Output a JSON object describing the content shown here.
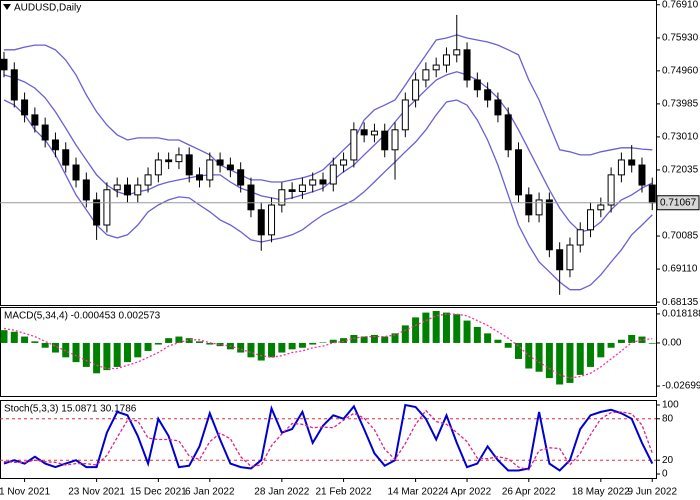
{
  "chart_data": [
    {
      "type": "candlestick",
      "title": "AUDUSD,Daily",
      "categories": [
        null,
        null,
        "1 Nov 2021",
        null,
        null,
        null,
        null,
        null,
        null,
        "23 Nov 2021",
        null,
        null,
        null,
        null,
        null,
        "15 Dec 2021",
        null,
        null,
        null,
        null,
        "6 Jan 2022",
        null,
        null,
        null,
        null,
        null,
        null,
        "28 Jan 2022",
        null,
        null,
        null,
        null,
        null,
        "21 Feb 2022",
        null,
        null,
        null,
        null,
        null,
        null,
        "14 Mar 2022",
        null,
        null,
        null,
        null,
        "4 Apr 2022",
        null,
        null,
        null,
        null,
        null,
        "26 Apr 2022",
        null,
        null,
        null,
        null,
        null,
        null,
        "18 May 2022",
        null,
        null,
        null,
        null,
        "9 Jun 2022"
      ],
      "open": [
        0.753,
        0.7499,
        0.741,
        0.7366,
        0.7336,
        0.7292,
        0.7263,
        0.7218,
        0.7174,
        0.7115,
        0.7041,
        0.7145,
        0.7159,
        0.713,
        0.7159,
        0.7189,
        0.7233,
        0.7228,
        0.7248,
        0.7189,
        0.7174,
        0.7233,
        0.7218,
        0.7204,
        0.7159,
        0.7086,
        0.7012,
        0.71,
        0.7145,
        0.714,
        0.7159,
        0.7174,
        0.7162,
        0.7218,
        0.7233,
        0.7322,
        0.7307,
        0.7318,
        0.7263,
        0.7322,
        0.741,
        0.7469,
        0.7499,
        0.7513,
        0.7543,
        0.7558,
        0.7469,
        0.744,
        0.741,
        0.7366,
        0.7263,
        0.713,
        0.7071,
        0.7115,
        0.6968,
        0.6909,
        0.6982,
        0.7027,
        0.7086,
        0.71,
        0.7189,
        0.7233,
        0.7218,
        0.7159
      ],
      "high": [
        0.7552,
        0.7521,
        0.7432,
        0.7388,
        0.7358,
        0.7314,
        0.7285,
        0.724,
        0.7196,
        0.7137,
        0.7167,
        0.7181,
        0.7181,
        0.7181,
        0.7211,
        0.7255,
        0.7255,
        0.727,
        0.727,
        0.7211,
        0.7255,
        0.7255,
        0.724,
        0.7226,
        0.7181,
        0.7108,
        0.7122,
        0.7167,
        0.7167,
        0.7181,
        0.7196,
        0.7196,
        0.724,
        0.7255,
        0.7344,
        0.7344,
        0.734,
        0.734,
        0.7344,
        0.7432,
        0.7491,
        0.7521,
        0.7535,
        0.7565,
        0.7661,
        0.758,
        0.7491,
        0.7462,
        0.7432,
        0.7388,
        0.7285,
        0.7152,
        0.7137,
        0.7137,
        0.699,
        0.7004,
        0.7049,
        0.7108,
        0.7122,
        0.7211,
        0.7255,
        0.7277,
        0.724,
        0.7181
      ],
      "low": [
        0.7477,
        0.7388,
        0.7344,
        0.7314,
        0.727,
        0.7241,
        0.7196,
        0.7152,
        0.7093,
        0.6997,
        0.7019,
        0.7123,
        0.7108,
        0.7108,
        0.7137,
        0.7167,
        0.7206,
        0.7206,
        0.7167,
        0.7152,
        0.7152,
        0.7196,
        0.7182,
        0.7137,
        0.7064,
        0.6965,
        0.699,
        0.7078,
        0.7118,
        0.7118,
        0.7137,
        0.714,
        0.714,
        0.7196,
        0.7211,
        0.7285,
        0.7285,
        0.7241,
        0.7175,
        0.73,
        0.7388,
        0.7447,
        0.7477,
        0.7491,
        0.7521,
        0.7447,
        0.7418,
        0.7388,
        0.7344,
        0.7241,
        0.7108,
        0.7049,
        0.7049,
        0.6946,
        0.6835,
        0.6887,
        0.696,
        0.7005,
        0.7064,
        0.7078,
        0.7167,
        0.7196,
        0.7137,
        0.7085
      ],
      "close": [
        0.7499,
        0.741,
        0.7366,
        0.7336,
        0.7292,
        0.7263,
        0.7218,
        0.7174,
        0.7115,
        0.7041,
        0.7145,
        0.7159,
        0.713,
        0.7159,
        0.7189,
        0.7233,
        0.7228,
        0.7248,
        0.7189,
        0.7174,
        0.7233,
        0.7218,
        0.7204,
        0.7159,
        0.7086,
        0.7012,
        0.71,
        0.7145,
        0.714,
        0.7159,
        0.7174,
        0.7162,
        0.7218,
        0.7233,
        0.7322,
        0.7307,
        0.7318,
        0.7263,
        0.7322,
        0.741,
        0.7469,
        0.7499,
        0.7513,
        0.7543,
        0.7558,
        0.7469,
        0.744,
        0.741,
        0.7366,
        0.7263,
        0.713,
        0.7071,
        0.7115,
        0.6968,
        0.6909,
        0.6982,
        0.7027,
        0.7086,
        0.71,
        0.7189,
        0.7233,
        0.7218,
        0.7159,
        0.71067
      ],
      "bull_color": "#ffffff",
      "bear_color": "#000000",
      "series": [
        {
          "type": "line",
          "color": "#6a5fd8",
          "values": [
            0.7558,
            0.7558,
            0.7566,
            0.7572,
            0.7572,
            0.7558,
            0.7528,
            0.7484,
            0.7425,
            0.7375,
            0.7336,
            0.7307,
            0.7292,
            0.7298,
            0.7298,
            0.7298,
            0.7292,
            0.7292,
            0.7277,
            0.7263,
            0.7248,
            0.7218,
            0.7204,
            0.7189,
            0.7174,
            0.7174,
            0.7168,
            0.7168,
            0.7174,
            0.718,
            0.7189,
            0.7204,
            0.7233,
            0.7263,
            0.7292,
            0.7351,
            0.7381,
            0.7395,
            0.741,
            0.7454,
            0.7499,
            0.7543,
            0.7587,
            0.7593,
            0.7602,
            0.7593,
            0.7587,
            0.7581,
            0.7572,
            0.7558,
            0.7543,
            0.7469,
            0.741,
            0.7336,
            0.7263,
            0.7257,
            0.7248,
            0.7248,
            0.7257,
            0.7263,
            0.7269,
            0.7269,
            0.7265,
            0.7263
          ]
        },
        {
          "type": "line",
          "color": "#6a5fd8",
          "values": [
            0.7484,
            0.7475,
            0.7463,
            0.7445,
            0.7416,
            0.7375,
            0.7327,
            0.7277,
            0.7233,
            0.7189,
            0.7159,
            0.7139,
            0.713,
            0.7139,
            0.7145,
            0.7159,
            0.7168,
            0.7174,
            0.718,
            0.7186,
            0.7189,
            0.7189,
            0.7168,
            0.715,
            0.7139,
            0.7127,
            0.7121,
            0.7115,
            0.7121,
            0.713,
            0.7139,
            0.715,
            0.7174,
            0.7198,
            0.7218,
            0.7248,
            0.7277,
            0.7307,
            0.7345,
            0.7381,
            0.741,
            0.744,
            0.7469,
            0.7484,
            0.7493,
            0.7484,
            0.7469,
            0.7445,
            0.7416,
            0.7375,
            0.7322,
            0.7263,
            0.7204,
            0.7145,
            0.7091,
            0.705,
            0.7021,
            0.7027,
            0.705,
            0.7086,
            0.7115,
            0.713,
            0.715,
            0.7165
          ]
        },
        {
          "type": "line",
          "color": "#6a5fd8",
          "values": [
            0.741,
            0.7395,
            0.7366,
            0.7322,
            0.7292,
            0.7248,
            0.7189,
            0.713,
            0.7086,
            0.7041,
            0.7012,
            0.7003,
            0.7012,
            0.7041,
            0.708,
            0.71,
            0.7115,
            0.7124,
            0.7121,
            0.71,
            0.708,
            0.7056,
            0.7041,
            0.7021,
            0.6997,
            0.6991,
            0.6997,
            0.7003,
            0.7012,
            0.7027,
            0.705,
            0.7071,
            0.7086,
            0.71,
            0.7115,
            0.7139,
            0.7168,
            0.7198,
            0.7227,
            0.7257,
            0.7286,
            0.7322,
            0.7366,
            0.7404,
            0.741,
            0.7395,
            0.7351,
            0.7292,
            0.7218,
            0.713,
            0.7041,
            0.6982,
            0.6932,
            0.6903,
            0.6873,
            0.685,
            0.685,
            0.6864,
            0.6894,
            0.6932,
            0.6968,
            0.7012,
            0.7041,
            0.7071
          ]
        }
      ],
      "last_price": 0.71067,
      "ylim": [
        0.6805,
        0.7705
      ],
      "yticks": [
        {
          "value": 0.7691,
          "label": "0.76910"
        },
        {
          "value": 0.7593,
          "label": "0.75930"
        },
        {
          "value": 0.7496,
          "label": "0.74960"
        },
        0.73985,
        {
          "value": 0.7301,
          "label": "0.73010"
        },
        0.72035,
        0.70085,
        {
          "value": 0.6911,
          "label": "0.69110"
        },
        0.68135
      ]
    },
    {
      "type": "bar",
      "title": "MACD(5,34,4) -0.000453 0.002573",
      "series": [
        {
          "type": "bar",
          "color": "#008000",
          "values": [
            0.008,
            0.007,
            0.004,
            0.001,
            -0.003,
            -0.006,
            -0.009,
            -0.012,
            -0.015,
            -0.019,
            -0.017,
            -0.015,
            -0.012,
            -0.009,
            -0.005,
            -0.001,
            0.003,
            0.004,
            0.003,
            0.001,
            -0.001,
            -0.002,
            -0.004,
            -0.006,
            -0.009,
            -0.011,
            -0.009,
            -0.006,
            -0.004,
            -0.003,
            -0.001,
            0.0003,
            0.002,
            0.003,
            0.005,
            0.004,
            0.005,
            0.004,
            0.006,
            0.011,
            0.016,
            0.019,
            0.02,
            0.019,
            0.018,
            0.014,
            0.01,
            0.006,
            0.002,
            -0.003,
            -0.01,
            -0.016,
            -0.018,
            -0.022,
            -0.026,
            -0.025,
            -0.02,
            -0.015,
            -0.009,
            -0.003,
            0.002,
            0.005,
            0.004,
            -0.000453
          ]
        },
        {
          "type": "line",
          "color": "#ff2fa0",
          "dash": "2,2",
          "values": [
            0.009,
            0.008,
            0.006,
            0.004,
            0.001,
            -0.002,
            -0.005,
            -0.008,
            -0.011,
            -0.014,
            -0.016,
            -0.016,
            -0.014,
            -0.012,
            -0.009,
            -0.006,
            -0.002,
            0.0002,
            0.002,
            0.002,
            0.0001,
            -0.001,
            -0.002,
            -0.004,
            -0.006,
            -0.008,
            -0.009,
            -0.008,
            -0.006,
            -0.005,
            -0.003,
            -0.002,
            0.0001,
            0.001,
            0.003,
            0.004,
            0.004,
            0.004,
            0.005,
            0.008,
            0.011,
            0.014,
            0.017,
            0.018,
            0.018,
            0.017,
            0.014,
            0.011,
            0.007,
            0.003,
            -0.002,
            -0.008,
            -0.012,
            -0.016,
            -0.02,
            -0.022,
            -0.021,
            -0.019,
            -0.015,
            -0.01,
            -0.005,
            0.0002,
            0.002,
            0.002573
          ]
        }
      ],
      "ylim": [
        -0.0332,
        0.0225
      ],
      "yticks": [
        0.018188,
        {
          "value": 0,
          "label": "0.00"
        },
        -0.026994
      ]
    },
    {
      "type": "line",
      "title": "Stoch(5,3,3) 15.0871 30.1786",
      "series": [
        {
          "type": "line",
          "color": "#0000d0",
          "width": 2,
          "values": [
            15,
            20,
            15,
            25,
            15,
            10,
            15,
            20,
            10,
            10,
            60,
            90,
            85,
            55,
            15,
            80,
            55,
            10,
            12,
            40,
            88,
            50,
            15,
            10,
            8,
            20,
            95,
            60,
            65,
            90,
            45,
            70,
            85,
            80,
            98,
            65,
            30,
            12,
            20,
            100,
            97,
            80,
            50,
            85,
            45,
            10,
            15,
            40,
            20,
            5,
            5,
            8,
            90,
            15,
            5,
            20,
            65,
            85,
            90,
            93,
            88,
            80,
            45,
            15.0871
          ]
        },
        {
          "type": "line",
          "color": "#e0208a",
          "dash": "3,2",
          "values": [
            18,
            17,
            17,
            20,
            18,
            17,
            13,
            15,
            15,
            13,
            27,
            53,
            78,
            77,
            52,
            50,
            50,
            48,
            26,
            21,
            47,
            59,
            51,
            25,
            11,
            13,
            41,
            58,
            73,
            72,
            67,
            68,
            67,
            78,
            88,
            81,
            64,
            36,
            21,
            44,
            72,
            92,
            76,
            72,
            60,
            47,
            23,
            22,
            25,
            22,
            10,
            6,
            34,
            38,
            37,
            13,
            30,
            57,
            80,
            89,
            90,
            87,
            71,
            30.1786
          ]
        }
      ],
      "levels": [
        20,
        80
      ],
      "level_color": "#e03030",
      "ylim": [
        -5.8,
        107.2
      ],
      "yticks": [
        100,
        80,
        20,
        0
      ]
    }
  ]
}
